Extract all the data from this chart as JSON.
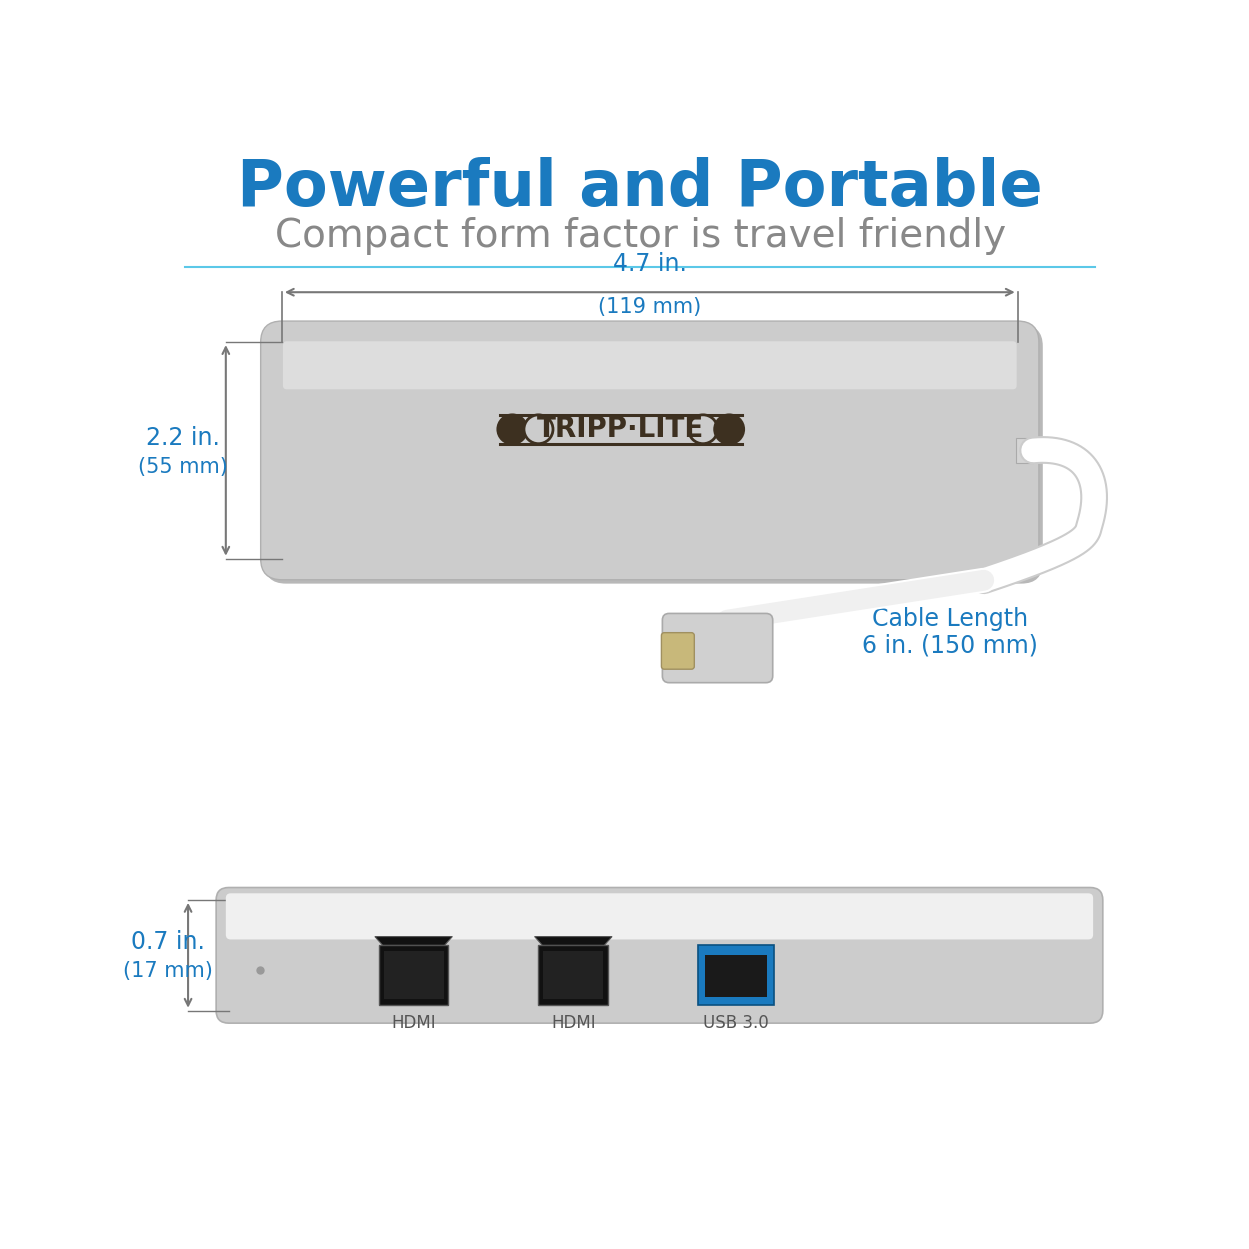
{
  "title": "Powerful and Portable",
  "subtitle": "Compact form factor is travel friendly",
  "title_color": "#1a7abf",
  "subtitle_color": "#888888",
  "bg_color": "#ffffff",
  "dim_color": "#1a7abf",
  "dim_line_color": "#777777",
  "device_color": "#cccccc",
  "device_color2": "#d8d8d8",
  "device_border_color": "#b0b0b0",
  "cable_color": "#efefef",
  "usb_color": "#1a7abf",
  "sep_line_color": "#5bc8e8",
  "dim_width_label": "4.7 in.",
  "dim_width_mm": "(119 mm)",
  "dim_height_label": "2.2 in.",
  "dim_height_mm": "(55 mm)",
  "dim_depth_label": "0.7 in.",
  "dim_depth_mm": "(17 mm)",
  "cable_label": "Cable Length",
  "cable_value": "6 in. (150 mm)"
}
